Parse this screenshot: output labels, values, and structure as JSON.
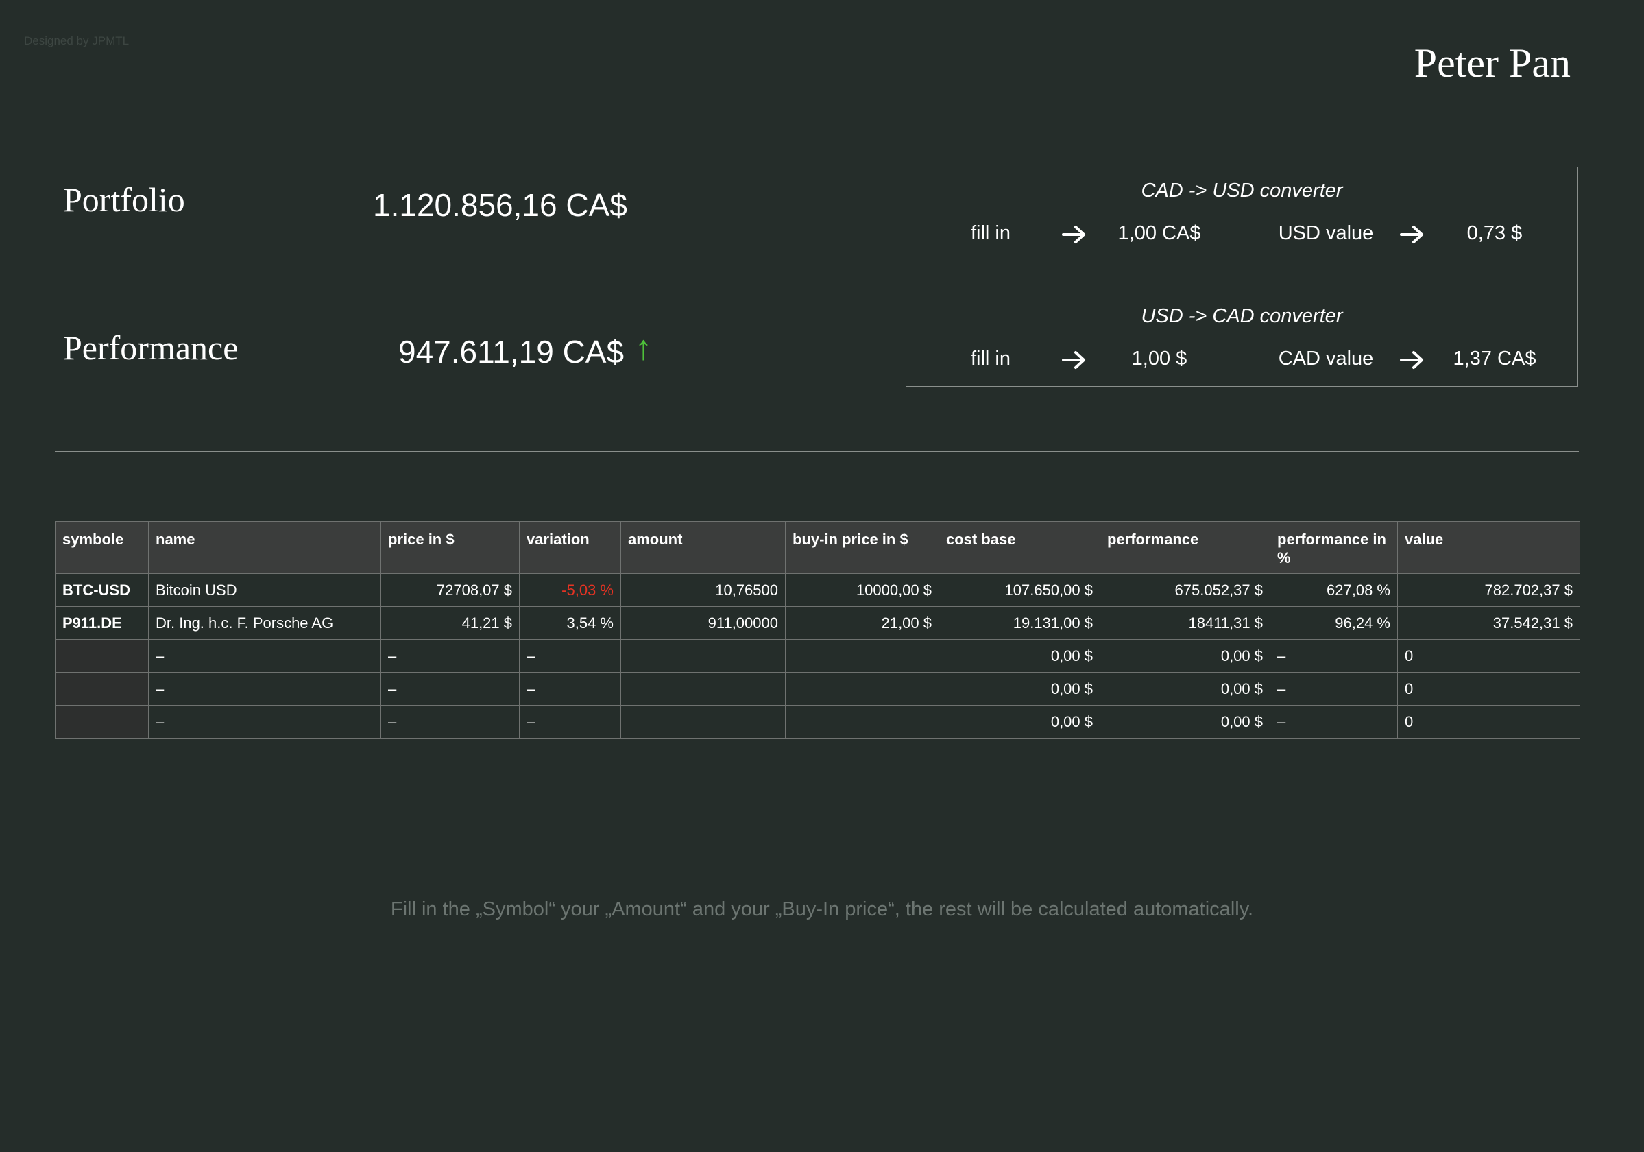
{
  "header": {
    "credit": "Designed by JPMTL",
    "user": "Peter Pan"
  },
  "summary": {
    "portfolio_label": "Portfolio",
    "portfolio_value": "1.120.856,16 CA$",
    "performance_label": "Performance",
    "performance_value": "947.611,19 CA$",
    "performance_arrow": "↑"
  },
  "converters": [
    {
      "title": "CAD -> USD converter",
      "input_label": "fill in",
      "input_value": "1,00 CA$",
      "output_label": "USD value",
      "output_value": "0,73 $"
    },
    {
      "title": "USD -> CAD converter",
      "input_label": "fill in",
      "input_value": "1,00 $",
      "output_label": "CAD value",
      "output_value": "1,37 CA$"
    }
  ],
  "table": {
    "headers": [
      "symbole",
      "name",
      "price in $",
      "variation",
      "amount",
      "buy-in price in $",
      "cost base",
      "performance",
      "performance in %",
      "value"
    ],
    "rows": [
      [
        "BTC-USD",
        "Bitcoin USD",
        "72708,07 $",
        "-5,03 %",
        "10,76500",
        "10000,00 $",
        "107.650,00 $",
        "675.052,37 $",
        "627,08 %",
        "782.702,37 $"
      ],
      [
        "P911.DE",
        "Dr. Ing. h.c. F. Porsche AG",
        "41,21 $",
        "3,54 %",
        "911,00000",
        "21,00 $",
        "19.131,00 $",
        "18411,31 $",
        "96,24 %",
        "37.542,31 $"
      ],
      [
        null,
        "–",
        "–",
        "–",
        null,
        null,
        "0,00 $",
        "0,00 $",
        "–",
        "0"
      ],
      [
        null,
        "–",
        "–",
        "–",
        null,
        null,
        "0,00 $",
        "0,00 $",
        "–",
        "0"
      ],
      [
        null,
        "–",
        "–",
        "–",
        null,
        null,
        "0,00 $",
        "0,00 $",
        "–",
        "0"
      ]
    ]
  },
  "footer": "Fill in the „Symbol“ your „Amount“ and your „Buy-In price“, the rest will be calculated automatically."
}
